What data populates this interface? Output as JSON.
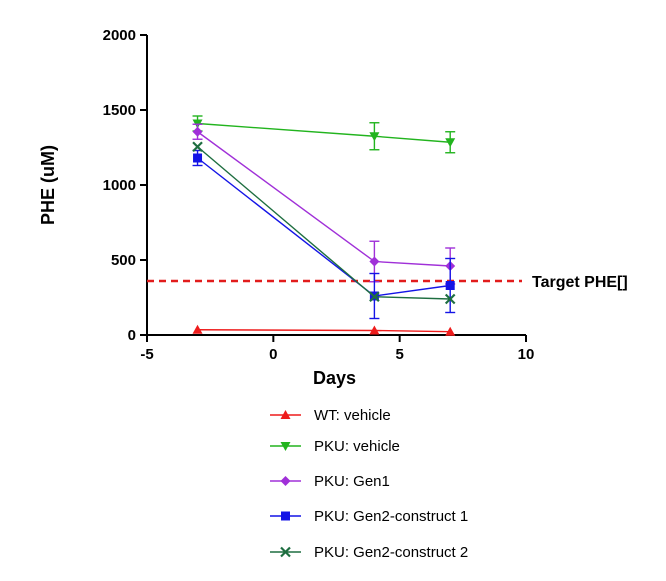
{
  "chart_data": {
    "type": "line",
    "title": "",
    "xlabel": "Days",
    "ylabel": "PHE (uM)",
    "xlim": [
      -5,
      10
    ],
    "ylim": [
      0,
      2000
    ],
    "xticks": [
      -5,
      0,
      5,
      10
    ],
    "yticks": [
      0,
      500,
      1000,
      1500,
      2000
    ],
    "grid": false,
    "legend_position": "bottom",
    "series": [
      {
        "name": "WT: vehicle",
        "color": "#ee1c1c",
        "marker": "triangle-up",
        "x": [
          -3,
          4,
          7
        ],
        "y": [
          35,
          30,
          22
        ],
        "error": [
          0,
          0,
          0
        ]
      },
      {
        "name": "PKU: vehicle",
        "color": "#22b41e",
        "marker": "triangle-down",
        "x": [
          -3,
          4,
          7
        ],
        "y": [
          1410,
          1325,
          1285
        ],
        "error": [
          50,
          90,
          70
        ]
      },
      {
        "name": "PKU: Gen1",
        "color": "#a030d8",
        "marker": "diamond",
        "x": [
          -3,
          4,
          7
        ],
        "y": [
          1355,
          490,
          460
        ],
        "error": [
          50,
          135,
          120
        ]
      },
      {
        "name": "PKU: Gen2-construct 1",
        "color": "#1414e6",
        "marker": "square",
        "x": [
          -3,
          4,
          7
        ],
        "y": [
          1180,
          260,
          330
        ],
        "error": [
          50,
          150,
          180
        ]
      },
      {
        "name": "PKU: Gen2-construct 2",
        "color": "#1e6e40",
        "marker": "x",
        "x": [
          -3,
          4,
          7
        ],
        "y": [
          1255,
          255,
          240
        ],
        "error": [
          0,
          0,
          0
        ]
      }
    ],
    "reference_line": {
      "label": "Target PHE[]",
      "y": 360,
      "color": "#e21c1c",
      "style": "dashed"
    }
  }
}
